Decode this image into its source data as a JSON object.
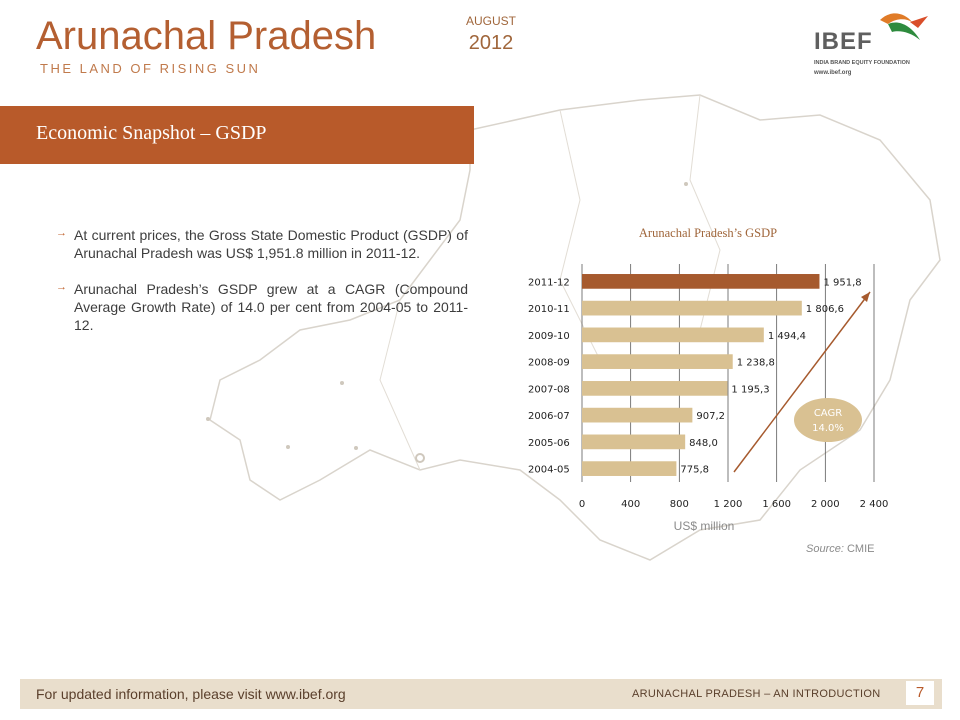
{
  "header": {
    "title": "Arunachal Pradesh",
    "subtitle": "THE LAND OF RISING SUN",
    "month": "AUGUST",
    "year": "2012"
  },
  "logo": {
    "name": "IBEF",
    "tagline": "INDIA BRAND EQUITY FOUNDATION",
    "url": "www.ibef.org"
  },
  "section": {
    "title": "Economic Snapshot – GSDP"
  },
  "bullets": [
    "At current prices, the Gross State Domestic Product (GSDP) of Arunachal Pradesh was US$ 1,951.8 million in 2011-12.",
    "Arunachal Pradesh’s GSDP grew at a CAGR (Compound Average Growth Rate) of 14.0 per cent from 2004-05 to 2011-12."
  ],
  "chart_data": {
    "type": "bar",
    "orientation": "horizontal",
    "title": "Arunachal Pradesh’s GSDP",
    "xlabel": "US$ million",
    "categories": [
      "2004-05",
      "2005-06",
      "2006-07",
      "2007-08",
      "2008-09",
      "2009-10",
      "2010-11",
      "2011-12"
    ],
    "values": [
      775.8,
      848.0,
      907.2,
      1195.3,
      1238.8,
      1494.4,
      1806.6,
      1951.8
    ],
    "data_labels": [
      "775,8",
      "848,0",
      "907,2",
      "1 195,3",
      "1 238,8",
      "1 494,4",
      "1 806,6",
      "1 951,8"
    ],
    "xlim": [
      0,
      2400
    ],
    "x_ticks": [
      0,
      400,
      800,
      1200,
      1600,
      2000,
      2400
    ],
    "x_tick_labels": [
      "0",
      "400",
      "800",
      "1 200",
      "1 600",
      "2 000",
      "2 400"
    ],
    "grid": true,
    "highlight_category": "2011-12",
    "colors": {
      "bar": "#d9c192",
      "highlight": "#a65a2e",
      "cagr_badge": "#d9c192",
      "trend_arrow": "#a65a2e"
    },
    "annotation": {
      "label": "CAGR",
      "value": "14.0%"
    }
  },
  "source": {
    "label": "Source:",
    "value": "CMIE"
  },
  "footer": {
    "left_text": "For updated information, please visit www.ibef.org",
    "right_text": "ARUNACHAL PRADESH – AN INTRODUCTION",
    "page_number": "7"
  },
  "colors": {
    "accent": "#b85a2a",
    "title": "#b45f31",
    "footer_bg": "#e9decc"
  }
}
